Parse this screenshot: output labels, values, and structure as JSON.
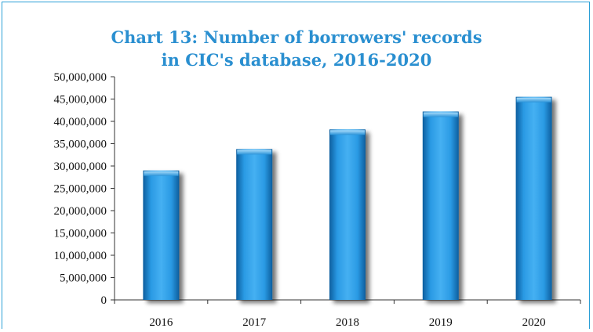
{
  "chart_data": {
    "type": "bar",
    "title_lines": [
      "Chart 13: Number of borrowers' records",
      "in CIC's database, 2016-2020"
    ],
    "categories": [
      "2016",
      "2017",
      "2018",
      "2019",
      "2020"
    ],
    "values": [
      29000000,
      33800000,
      38200000,
      42200000,
      45500000
    ],
    "ylim": [
      0,
      50000000
    ],
    "y_ticks": [
      0,
      5000000,
      10000000,
      15000000,
      20000000,
      25000000,
      30000000,
      35000000,
      40000000,
      45000000,
      50000000
    ],
    "y_tick_labels": [
      "0",
      "5,000,000",
      "10,000,000",
      "15,000,000",
      "20,000,000",
      "25,000,000",
      "30,000,000",
      "35,000,000",
      "40,000,000",
      "45,000,000",
      "50,000,000"
    ],
    "grid": false,
    "legend": "none",
    "bar_color": "#1f8fd6"
  }
}
